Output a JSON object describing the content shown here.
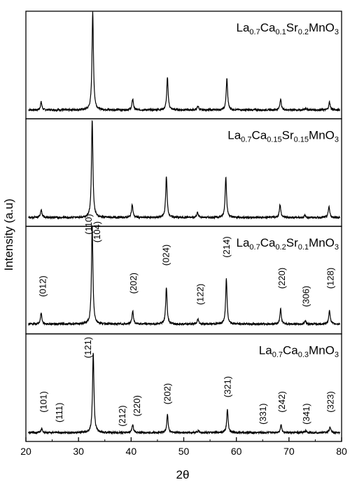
{
  "chart_data": {
    "type": "line",
    "xlabel": "2θ",
    "ylabel": "Intensity (a.u)",
    "xlim": [
      20,
      80
    ],
    "xticks": [
      20,
      30,
      40,
      50,
      60,
      70,
      80
    ],
    "grid": false,
    "stacked_panels": true,
    "line_color": "#000000",
    "panels": [
      {
        "label": [
          {
            "t": "La"
          },
          {
            "t": "0.7",
            "sub": true
          },
          {
            "t": "Ca"
          },
          {
            "t": "0.1",
            "sub": true
          },
          {
            "t": "Sr"
          },
          {
            "t": "0.2",
            "sub": true
          },
          {
            "t": "MnO"
          },
          {
            "t": "3",
            "sub": true
          }
        ],
        "series_name": "La0.7Ca0.1Sr0.2MnO3",
        "baseline": 0.06,
        "peaks": [
          {
            "x": 22.9,
            "h": 0.08
          },
          {
            "x": 32.7,
            "h": 0.98
          },
          {
            "x": 40.3,
            "h": 0.11
          },
          {
            "x": 46.9,
            "h": 0.32
          },
          {
            "x": 52.7,
            "h": 0.04
          },
          {
            "x": 58.2,
            "h": 0.31
          },
          {
            "x": 68.4,
            "h": 0.11
          },
          {
            "x": 73.2,
            "h": 0.02
          },
          {
            "x": 77.7,
            "h": 0.08
          }
        ],
        "annotations": []
      },
      {
        "label": [
          {
            "t": "La"
          },
          {
            "t": "0.7",
            "sub": true
          },
          {
            "t": "Ca"
          },
          {
            "t": "0.15",
            "sub": true
          },
          {
            "t": "Sr"
          },
          {
            "t": "0.15",
            "sub": true
          },
          {
            "t": "MnO"
          },
          {
            "t": "3",
            "sub": true
          }
        ],
        "series_name": "La0.7Ca0.15Sr0.15MnO3",
        "baseline": 0.06,
        "peaks": [
          {
            "x": 22.9,
            "h": 0.08
          },
          {
            "x": 32.6,
            "h": 0.98
          },
          {
            "x": 40.2,
            "h": 0.13
          },
          {
            "x": 46.7,
            "h": 0.41
          },
          {
            "x": 52.6,
            "h": 0.05
          },
          {
            "x": 58.0,
            "h": 0.41
          },
          {
            "x": 68.3,
            "h": 0.13
          },
          {
            "x": 73.0,
            "h": 0.02
          },
          {
            "x": 77.6,
            "h": 0.11
          }
        ],
        "annotations": []
      },
      {
        "label": [
          {
            "t": "La"
          },
          {
            "t": "0.7",
            "sub": true
          },
          {
            "t": "Ca"
          },
          {
            "t": "0.2",
            "sub": true
          },
          {
            "t": "Sr"
          },
          {
            "t": "0.1",
            "sub": true
          },
          {
            "t": "MnO"
          },
          {
            "t": "3",
            "sub": true
          }
        ],
        "series_name": "La0.7Ca0.2Sr0.1MnO3",
        "baseline": 0.07,
        "peaks": [
          {
            "x": 22.9,
            "h": 0.11
          },
          {
            "x": 32.6,
            "h": 0.98
          },
          {
            "x": 40.3,
            "h": 0.13
          },
          {
            "x": 46.7,
            "h": 0.37
          },
          {
            "x": 52.7,
            "h": 0.05
          },
          {
            "x": 58.1,
            "h": 0.45
          },
          {
            "x": 68.4,
            "h": 0.15
          },
          {
            "x": 73.1,
            "h": 0.03
          },
          {
            "x": 77.7,
            "h": 0.14
          }
        ],
        "annotations": [
          {
            "text": "(012)",
            "x": 23.2,
            "h": 0.34
          },
          {
            "text": "(110)",
            "x": 31.9,
            "h": 0.96
          },
          {
            "text": "(104)",
            "x": 33.5,
            "h": 0.88
          },
          {
            "text": "(202)",
            "x": 40.4,
            "h": 0.37
          },
          {
            "text": "(024)",
            "x": 46.6,
            "h": 0.65
          },
          {
            "text": "(122)",
            "x": 53.1,
            "h": 0.26
          },
          {
            "text": "(214)",
            "x": 58.1,
            "h": 0.73
          },
          {
            "text": "(220)",
            "x": 68.6,
            "h": 0.42
          },
          {
            "text": "(306)",
            "x": 73.2,
            "h": 0.24
          },
          {
            "text": "(128)",
            "x": 77.9,
            "h": 0.42
          }
        ]
      },
      {
        "label": [
          {
            "t": "La"
          },
          {
            "t": "0.7",
            "sub": true
          },
          {
            "t": "Ca"
          },
          {
            "t": "0.3",
            "sub": true
          },
          {
            "t": "MnO"
          },
          {
            "t": "3",
            "sub": true
          }
        ],
        "series_name": "La0.7Ca0.3MnO3",
        "baseline": 0.06,
        "peaks": [
          {
            "x": 23.0,
            "h": 0.04
          },
          {
            "x": 32.8,
            "h": 0.8
          },
          {
            "x": 40.3,
            "h": 0.08
          },
          {
            "x": 46.9,
            "h": 0.18
          },
          {
            "x": 52.8,
            "h": 0.02
          },
          {
            "x": 58.3,
            "h": 0.23
          },
          {
            "x": 68.5,
            "h": 0.08
          },
          {
            "x": 73.2,
            "h": 0.02
          },
          {
            "x": 77.8,
            "h": 0.06
          }
        ],
        "annotations": [
          {
            "text": "(101)",
            "x": 23.3,
            "h": 0.26
          },
          {
            "text": "(111)",
            "x": 26.3,
            "h": 0.16
          },
          {
            "text": "(121)",
            "x": 31.8,
            "h": 0.8
          },
          {
            "text": "(212)",
            "x": 38.3,
            "h": 0.12
          },
          {
            "text": "(220)",
            "x": 41.1,
            "h": 0.22
          },
          {
            "text": "(202)",
            "x": 46.9,
            "h": 0.34
          },
          {
            "text": "(321)",
            "x": 58.3,
            "h": 0.41
          },
          {
            "text": "(331)",
            "x": 65.0,
            "h": 0.14
          },
          {
            "text": "(242)",
            "x": 68.6,
            "h": 0.26
          },
          {
            "text": "(341)",
            "x": 73.3,
            "h": 0.14
          },
          {
            "text": "(323)",
            "x": 77.9,
            "h": 0.26
          }
        ]
      }
    ]
  }
}
